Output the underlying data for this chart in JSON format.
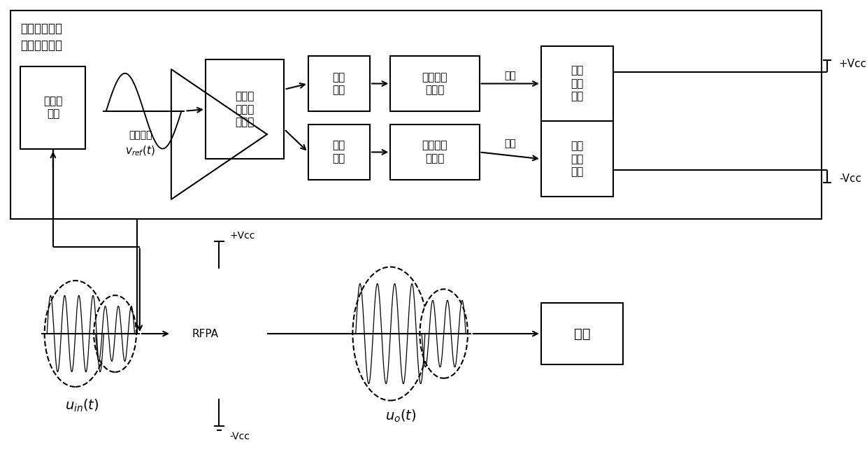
{
  "bg": "#ffffff",
  "lc": "#000000",
  "font": "SimHei",
  "title": "反激式多电平\n输出直流电源",
  "lbl_envelope": "包络线\n检测",
  "lbl_logic": "输出开\n关管逻\n辑控制",
  "lbl_pos_drv": "正组\n驱动",
  "lbl_pos_sw": "正组输出\n开关管",
  "lbl_pos_bus": "正组\n母线\n输出",
  "lbl_neg_drv": "负组\n驱动",
  "lbl_neg_sw": "负组输出\n开关管",
  "lbl_neg_bus": "负组\n母线\n输出",
  "lbl_send": "发射",
  "lbl_rfpa": "RFPA",
  "lbl_ref1": "参考信号",
  "lbl_ref2": "$v_{ref}(t)$",
  "lbl_uin": "$u_{in}(t)$",
  "lbl_uo": "$u_o(t)$",
  "lbl_ctrl": "控制",
  "lbl_vcc_p": "+Vcc",
  "lbl_vcc_m": "-Vcc"
}
